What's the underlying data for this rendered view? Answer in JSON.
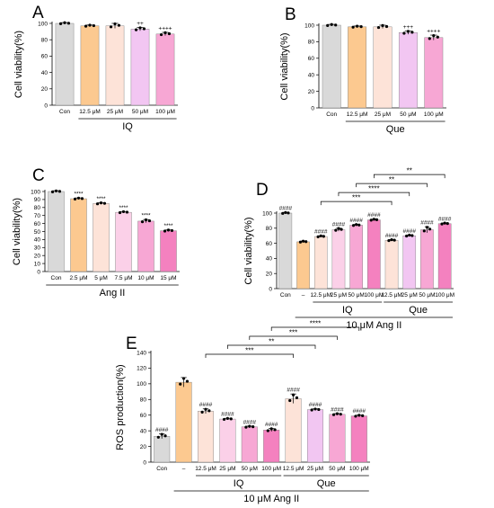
{
  "chart_data": [
    {
      "panel": "A",
      "type": "bar",
      "ylabel": "Cell viability(%)",
      "ylim": [
        0,
        100
      ],
      "yticks": [
        0,
        20,
        40,
        60,
        80,
        100
      ],
      "categories": [
        "Con",
        "12.5 μM",
        "25 μM",
        "50 μM",
        "100 μM"
      ],
      "values": [
        100,
        97,
        97,
        93,
        87
      ],
      "errors": [
        1,
        1,
        3,
        2,
        2
      ],
      "colors": [
        "#d9d9d9",
        "#fcc990",
        "#fde3d8",
        "#f2c6f2",
        "#f7a7d4"
      ],
      "annotations": [
        "",
        "",
        "",
        "++",
        "++++"
      ],
      "groups": [
        {
          "label": "IQ",
          "from": 1,
          "to": 4
        }
      ],
      "brackets": []
    },
    {
      "panel": "B",
      "type": "bar",
      "ylabel": "Cell viability(%)",
      "ylim": [
        0,
        100
      ],
      "yticks": [
        0,
        20,
        40,
        60,
        80,
        100
      ],
      "categories": [
        "Con",
        "12.5 μM",
        "25 μM",
        "50 μM",
        "100 μM"
      ],
      "values": [
        100,
        98,
        98,
        91,
        85
      ],
      "errors": [
        1,
        1,
        2,
        2,
        3
      ],
      "colors": [
        "#d9d9d9",
        "#fcc990",
        "#fde3d8",
        "#f2c6f2",
        "#f7a7d4"
      ],
      "annotations": [
        "",
        "",
        "",
        "+++",
        "++++"
      ],
      "groups": [
        {
          "label": "Que",
          "from": 1,
          "to": 4
        }
      ],
      "brackets": []
    },
    {
      "panel": "C",
      "type": "bar",
      "ylabel": "Cell viability(%)",
      "ylim": [
        0,
        100
      ],
      "yticks": [
        0,
        10,
        20,
        30,
        40,
        50,
        60,
        70,
        80,
        90,
        100
      ],
      "categories": [
        "Con",
        "2.5 μM",
        "5 μM",
        "7.5 μM",
        "10 μM",
        "15 μM"
      ],
      "values": [
        100,
        91,
        85,
        74,
        63,
        51
      ],
      "errors": [
        1,
        1,
        1,
        1,
        2,
        1
      ],
      "colors": [
        "#d9d9d9",
        "#fcc990",
        "#fde3d8",
        "#fbd0e8",
        "#f7a7d4",
        "#f481bf"
      ],
      "annotations": [
        "",
        "****",
        "****",
        "****",
        "****",
        "****"
      ],
      "groups": [
        {
          "label": "Ang II",
          "from": 0,
          "to": 5
        }
      ],
      "brackets": []
    },
    {
      "panel": "D",
      "type": "bar",
      "ylabel": "Cell viability(%)",
      "ylim": [
        0,
        100
      ],
      "yticks": [
        0,
        20,
        40,
        60,
        80,
        100
      ],
      "categories": [
        "Con",
        "–",
        "12.5 μM",
        "25 μM",
        "50 μM",
        "100 μM",
        "12.5 μM",
        "25 μM",
        "50 μM",
        "100 μM"
      ],
      "values": [
        100,
        62,
        69,
        78,
        84,
        91,
        64,
        70,
        78,
        86
      ],
      "errors": [
        1,
        1,
        1,
        2,
        1,
        1,
        1,
        1,
        4,
        1
      ],
      "colors": [
        "#d9d9d9",
        "#fcc990",
        "#fde3d8",
        "#fbd0e8",
        "#f7a7d4",
        "#f481bf",
        "#fde3d8",
        "#f2c6f2",
        "#f7a7d4",
        "#f481bf"
      ],
      "annotations": [
        "####",
        "",
        "####",
        "####",
        "####",
        "####",
        "####",
        "####",
        "####",
        "####"
      ],
      "groups": [
        {
          "label": "IQ",
          "from": 2,
          "to": 5
        },
        {
          "label": "Que",
          "from": 6,
          "to": 9
        }
      ],
      "treatment": {
        "label": "10 μM Ang II",
        "from": 1,
        "to": 9
      },
      "brackets": [
        {
          "from": 2,
          "to": 6,
          "label": "***",
          "level": 0
        },
        {
          "from": 3,
          "to": 7,
          "label": "****",
          "level": 1
        },
        {
          "from": 4,
          "to": 8,
          "label": "**",
          "level": 2
        },
        {
          "from": 5,
          "to": 9,
          "label": "**",
          "level": 3
        }
      ]
    },
    {
      "panel": "E",
      "type": "bar",
      "ylabel": "ROS production(%)",
      "ylim": [
        0,
        140
      ],
      "yticks": [
        0,
        20,
        40,
        60,
        80,
        100,
        120,
        140
      ],
      "categories": [
        "Con",
        "–",
        "12.5 μM",
        "25 μM",
        "50 μM",
        "100 μM",
        "12.5 μM",
        "25 μM",
        "50 μM",
        "100 μM"
      ],
      "values": [
        33,
        102,
        65,
        55,
        45,
        41,
        81,
        67,
        61,
        59
      ],
      "errors": [
        3,
        6,
        3,
        1,
        1,
        2,
        6,
        1,
        1,
        1
      ],
      "colors": [
        "#d9d9d9",
        "#fcc990",
        "#fde3d8",
        "#fbd0e8",
        "#f7a7d4",
        "#f481bf",
        "#fde3d8",
        "#f2c6f2",
        "#f7a7d4",
        "#f481bf"
      ],
      "annotations": [
        "####",
        "",
        "####",
        "####",
        "####",
        "####",
        "####",
        "####",
        "####",
        "####"
      ],
      "groups": [
        {
          "label": "IQ",
          "from": 2,
          "to": 5
        },
        {
          "label": "Que",
          "from": 6,
          "to": 9
        }
      ],
      "treatment": {
        "label": "10 μM Ang II",
        "from": 1,
        "to": 9
      },
      "brackets": [
        {
          "from": 2,
          "to": 6,
          "label": "***",
          "level": 0
        },
        {
          "from": 3,
          "to": 7,
          "label": "**",
          "level": 1
        },
        {
          "from": 4,
          "to": 8,
          "label": "***",
          "level": 2
        },
        {
          "from": 5,
          "to": 9,
          "label": "****",
          "level": 3
        }
      ]
    }
  ]
}
